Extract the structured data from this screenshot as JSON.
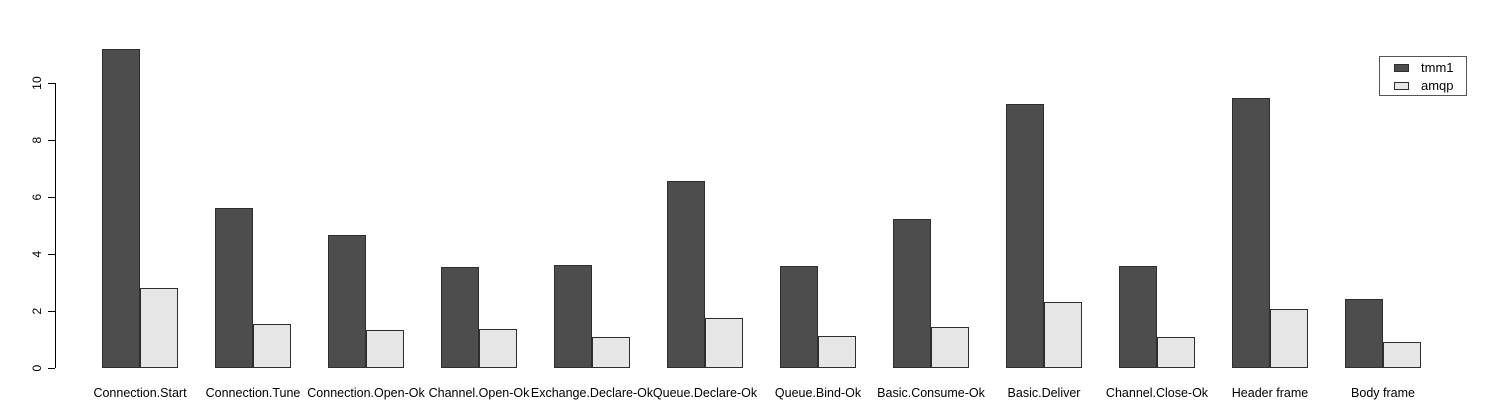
{
  "figure": {
    "background_color": "#ffffff",
    "text_color": "#000000",
    "bar_border_color": "#2e2e2e"
  },
  "legend": {
    "entries": [
      {
        "label": "tmm1",
        "color": "#4d4d4d"
      },
      {
        "label": "amqp",
        "color": "#e6e6e6"
      }
    ]
  },
  "chart_data": {
    "type": "bar",
    "grouped": true,
    "title": "",
    "xlabel": "",
    "ylabel": "",
    "grid": false,
    "legend_position": "top-right",
    "ylim": [
      0,
      11.3
    ],
    "yticks": [
      0,
      2,
      4,
      6,
      8,
      10
    ],
    "categories": [
      "Connection.Start",
      "Connection.Tune",
      "Connection.Open-Ok",
      "Channel.Open-Ok",
      "Exchange.Declare-Ok",
      "Queue.Declare-Ok",
      "Queue.Bind-Ok",
      "Basic.Consume-Ok",
      "Basic.Deliver",
      "Channel.Close-Ok",
      "Header frame",
      "Body frame"
    ],
    "series": [
      {
        "name": "tmm1",
        "color": "#4d4d4d",
        "values": [
          11.2,
          5.6,
          4.65,
          3.55,
          3.6,
          6.55,
          3.58,
          5.22,
          9.28,
          3.58,
          9.48,
          2.42
        ]
      },
      {
        "name": "amqp",
        "color": "#e6e6e6",
        "values": [
          2.82,
          1.55,
          1.35,
          1.38,
          1.1,
          1.75,
          1.12,
          1.44,
          2.3,
          1.08,
          2.08,
          0.9
        ]
      }
    ]
  }
}
